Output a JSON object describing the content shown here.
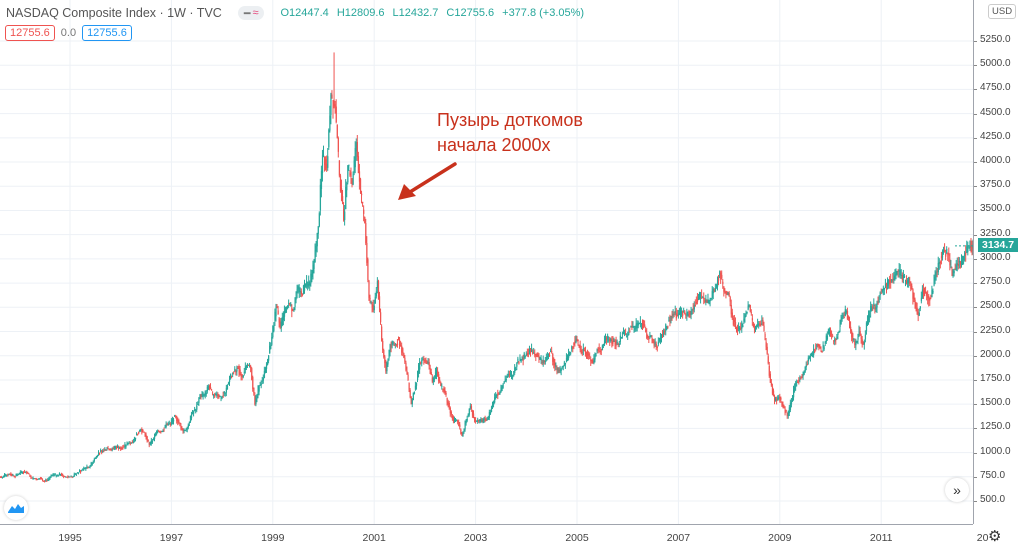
{
  "header": {
    "title": "NASDAQ Composite Index · 1W · TVC",
    "open": "O12447.4",
    "high": "H12809.6",
    "low": "L12432.7",
    "close": "C12755.6",
    "change": "+377.8 (+3.05%)",
    "sell_price": "12755.6",
    "spread": "0.0",
    "buy_price": "12755.6"
  },
  "currency": "USD",
  "last_price_label": "3134.7",
  "annotation": {
    "line1": "Пузырь доткомов",
    "line2": "начала 2000х",
    "color": "#c8311c"
  },
  "colors": {
    "up": "#26a69a",
    "down": "#ef5350",
    "grid": "#edf1f6"
  },
  "chart_data": {
    "type": "candlestick",
    "interval": "monthly closes (approx.)",
    "start": "1993-08",
    "closes": [
      743,
      763,
      779,
      754,
      777,
      800,
      793,
      743,
      733,
      735,
      706,
      722,
      765,
      764,
      777,
      750,
      752,
      755,
      793,
      817,
      843,
      864,
      933,
      1001,
      1020,
      1044,
      1036,
      1059,
      1052,
      1059,
      1100,
      1101,
      1191,
      1243,
      1185,
      1081,
      1141,
      1227,
      1222,
      1293,
      1291,
      1380,
      1309,
      1222,
      1261,
      1400,
      1442,
      1594,
      1587,
      1686,
      1594,
      1601,
      1570,
      1620,
      1771,
      1835,
      1868,
      1779,
      1895,
      1872,
      1499,
      1694,
      1771,
      1950,
      2193,
      2505,
      2288,
      2461,
      2543,
      2471,
      2686,
      2638,
      2739,
      2746,
      2966,
      3336,
      4069,
      3940,
      4697,
      4573,
      3861,
      3401,
      3966,
      3767,
      4206,
      3673,
      3370,
      2598,
      2471,
      2773,
      2152,
      1840,
      2116,
      2110,
      2161,
      2027,
      1805,
      1499,
      1690,
      1931,
      1950,
      1934,
      1731,
      1845,
      1688,
      1616,
      1463,
      1328,
      1315,
      1172,
      1330,
      1479,
      1336,
      1321,
      1338,
      1341,
      1464,
      1596,
      1623,
      1735,
      1810,
      1787,
      1932,
      1960,
      2003,
      2066,
      2030,
      1994,
      1920,
      1987,
      2048,
      1887,
      1838,
      1897,
      1975,
      2097,
      2175,
      2062,
      2052,
      1999,
      1922,
      2068,
      2057,
      2185,
      2152,
      2152,
      2120,
      2233,
      2205,
      2306,
      2281,
      2340,
      2323,
      2179,
      2172,
      2091,
      2184,
      2258,
      2367,
      2432,
      2415,
      2464,
      2416,
      2422,
      2525,
      2605,
      2603,
      2546,
      2596,
      2701,
      2859,
      2661,
      2652,
      2389,
      2271,
      2279,
      2413,
      2523,
      2293,
      2326,
      2368,
      2092,
      1721,
      1536,
      1577,
      1476,
      1378,
      1529,
      1717,
      1774,
      1835,
      1979,
      2009,
      2122,
      2045,
      2145,
      2269,
      2147,
      2238,
      2398,
      2461,
      2257,
      2109,
      2255,
      2114,
      2369,
      2507,
      2498,
      2653,
      2700,
      2782,
      2781,
      2874,
      2835,
      2774,
      2756,
      2579,
      2415,
      2684,
      2620,
      2605,
      2814,
      2967,
      3092,
      3046,
      2827,
      2935,
      2940,
      3067,
      3116,
      3135
    ],
    "peak_high": 5132,
    "y_ticks": [
      "500.0",
      "750.0",
      "1000.0",
      "1250.0",
      "1500.0",
      "1750.0",
      "2000.0",
      "2250.0",
      "2500.0",
      "2750.0",
      "3000.0",
      "3250.0",
      "3500.0",
      "3750.0",
      "4000.0",
      "4250.0",
      "4500.0",
      "4750.0",
      "5000.0",
      "5250.0"
    ],
    "x_ticks": [
      "1995",
      "1997",
      "1999",
      "2001",
      "2003",
      "2005",
      "2007",
      "2009",
      "2011",
      "20"
    ],
    "ylim": [
      500,
      5250
    ],
    "grid": true
  }
}
